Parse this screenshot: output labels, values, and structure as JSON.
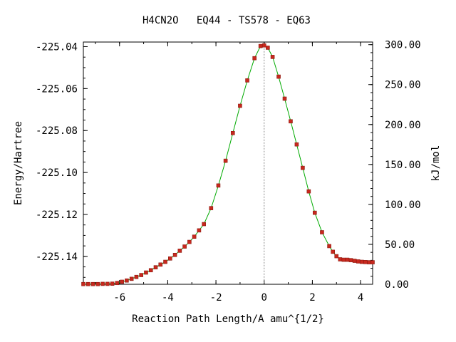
{
  "chart_data": {
    "type": "line",
    "title": "H4CN2O   EQ44 - TS578 - EQ63",
    "xlabel": "Reaction Path Length/A amu^{1/2}",
    "ylabel": "Energy/Hartree",
    "y2label": "kJ/mol",
    "xlim": [
      -7.5,
      4.5
    ],
    "ylim": [
      -225.1533,
      -225.0378
    ],
    "y2lim": [
      0.0,
      303.3
    ],
    "xticks": [
      -6,
      -4,
      -2,
      0,
      2,
      4
    ],
    "yticks": [
      -225.04,
      -225.06,
      -225.08,
      -225.1,
      -225.12,
      -225.14
    ],
    "y2ticks": [
      300.0,
      250.0,
      200.0,
      150.0,
      100.0,
      50.0,
      0.0
    ],
    "x_tick_labels": [
      "-6",
      "-4",
      "-2",
      "0",
      "2",
      "4"
    ],
    "y_tick_labels": [
      "-225.04",
      "-225.06",
      "-225.08",
      "-225.10",
      "-225.12",
      "-225.14"
    ],
    "y2_tick_labels": [
      "300.00",
      "250.00",
      "200.00",
      "150.00",
      "100.00",
      "50.00",
      "0.00"
    ],
    "ts_marker_x": 0.0,
    "colors": {
      "line": "#00aa00",
      "marker": "#c8281e",
      "marker_edge": "#8b1a10",
      "ts_line": "#888888"
    },
    "series": [
      {
        "x": [
          -7.5,
          -7.3,
          -7.1,
          -6.9,
          -6.7,
          -6.5,
          -6.3,
          -6.1,
          -5.9,
          -5.7,
          -5.5,
          -5.3,
          -5.1,
          -4.9,
          -4.7,
          -4.5,
          -4.3,
          -4.1,
          -3.9,
          -3.7,
          -3.5,
          -3.3,
          -3.1,
          -2.9,
          -2.7,
          -2.5,
          -2.2,
          -1.9,
          -1.6,
          -1.3,
          -1.0,
          -0.7,
          -0.4,
          -0.15,
          0.0,
          0.15,
          0.35,
          0.6,
          0.85,
          1.1,
          1.35,
          1.6,
          1.85,
          2.1,
          2.4,
          2.7,
          2.85,
          3.0,
          3.15,
          3.3,
          3.45,
          3.6,
          3.75,
          3.9,
          4.05,
          4.2,
          4.35,
          4.5
        ],
        "y": [
          -225.1532,
          -225.1532,
          -225.1532,
          -225.1532,
          -225.1531,
          -225.1531,
          -225.153,
          -225.1527,
          -225.1521,
          -225.1515,
          -225.1507,
          -225.1498,
          -225.1489,
          -225.1477,
          -225.1466,
          -225.1452,
          -225.1439,
          -225.1426,
          -225.141,
          -225.1393,
          -225.1373,
          -225.1353,
          -225.1331,
          -225.1306,
          -225.1276,
          -225.1246,
          -225.117,
          -225.1062,
          -225.0944,
          -225.0812,
          -225.0682,
          -225.0561,
          -225.0455,
          -225.0397,
          -225.0394,
          -225.0405,
          -225.0449,
          -225.0543,
          -225.0648,
          -225.0756,
          -225.0866,
          -225.0978,
          -225.109,
          -225.1192,
          -225.1285,
          -225.1351,
          -225.1378,
          -225.1399,
          -225.1414,
          -225.1416,
          -225.1416,
          -225.1418,
          -225.1421,
          -225.1424,
          -225.1426,
          -225.1427,
          -225.1428,
          -225.1428
        ]
      }
    ]
  }
}
